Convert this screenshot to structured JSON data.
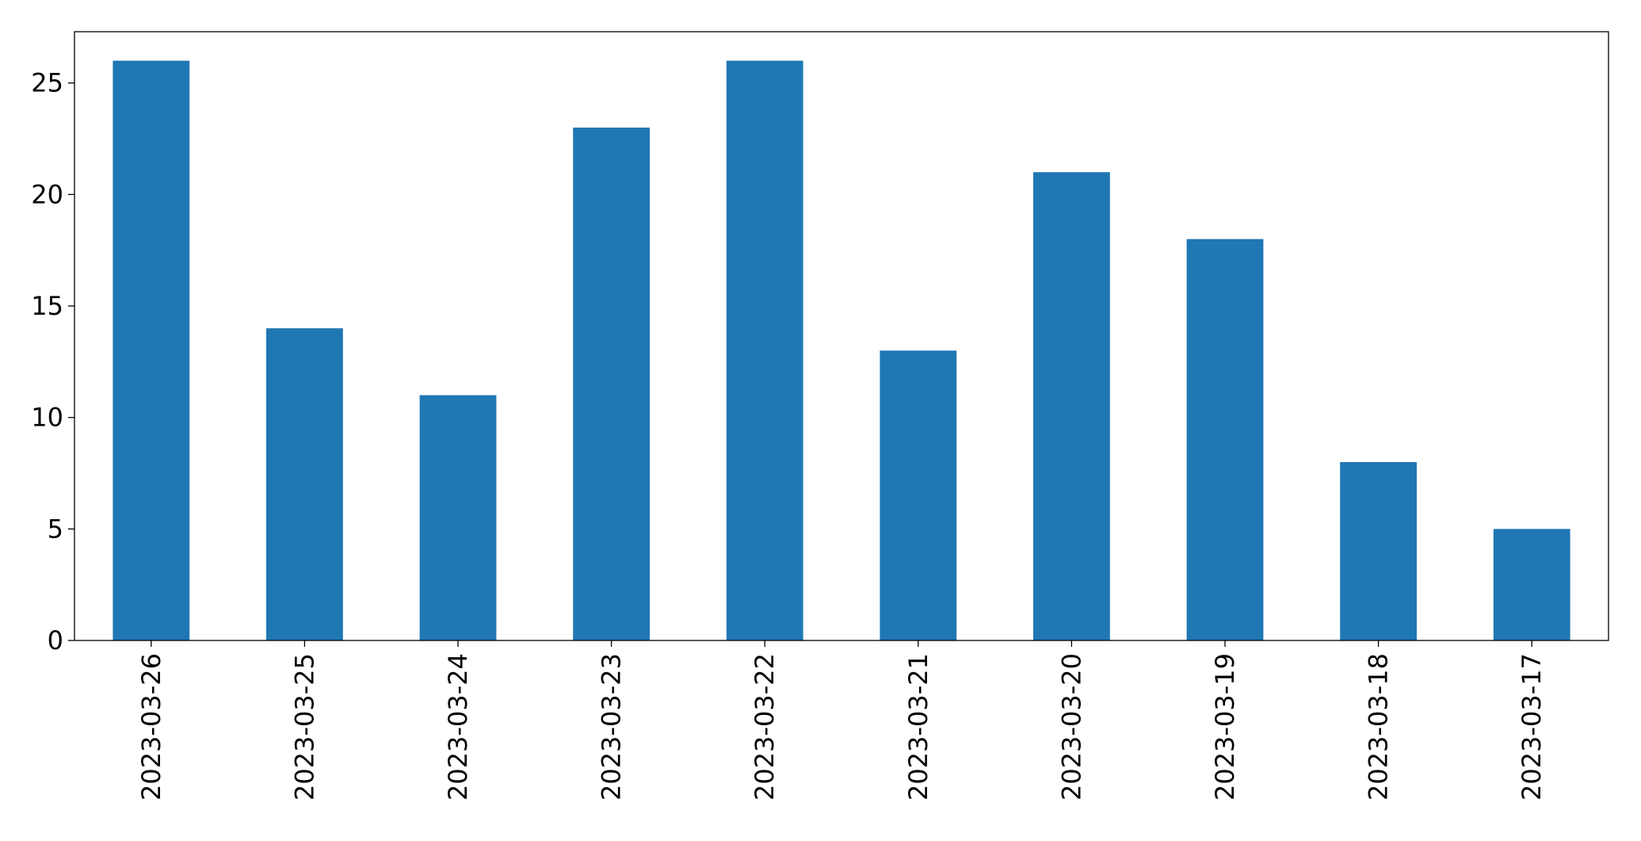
{
  "chart_data": {
    "type": "bar",
    "categories": [
      "2023-03-26",
      "2023-03-25",
      "2023-03-24",
      "2023-03-23",
      "2023-03-22",
      "2023-03-21",
      "2023-03-20",
      "2023-03-19",
      "2023-03-18",
      "2023-03-17"
    ],
    "values": [
      26,
      14,
      11,
      23,
      26,
      13,
      21,
      18,
      8,
      5
    ],
    "color": "#1f77b4",
    "ylim": [
      0,
      27.3
    ],
    "yticks": [
      0,
      5,
      10,
      15,
      20,
      25
    ],
    "grid": false
  }
}
